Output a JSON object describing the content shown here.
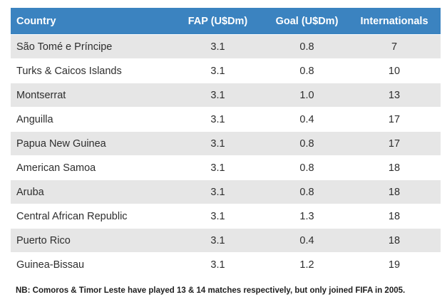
{
  "table": {
    "columns": [
      "Country",
      "FAP (U$Dm)",
      "Goal (U$Dm)",
      "Internationals"
    ],
    "rows": [
      {
        "country": "São Tomé e Príncipe",
        "fap": "3.1",
        "goal": "0.8",
        "internationals": "7"
      },
      {
        "country": "Turks & Caicos Islands",
        "fap": "3.1",
        "goal": "0.8",
        "internationals": "10"
      },
      {
        "country": "Montserrat",
        "fap": "3.1",
        "goal": "1.0",
        "internationals": "13"
      },
      {
        "country": "Anguilla",
        "fap": "3.1",
        "goal": "0.4",
        "internationals": "17"
      },
      {
        "country": "Papua New Guinea",
        "fap": "3.1",
        "goal": "0.8",
        "internationals": "17"
      },
      {
        "country": "American Samoa",
        "fap": "3.1",
        "goal": "0.8",
        "internationals": "18"
      },
      {
        "country": "Aruba",
        "fap": "3.1",
        "goal": "0.8",
        "internationals": "18"
      },
      {
        "country": "Central African Republic",
        "fap": "3.1",
        "goal": "1.3",
        "internationals": "18"
      },
      {
        "country": "Puerto Rico",
        "fap": "3.1",
        "goal": "0.4",
        "internationals": "18"
      },
      {
        "country": "Guinea-Bissau",
        "fap": "3.1",
        "goal": "1.2",
        "internationals": "19"
      }
    ]
  },
  "footnote": "NB: Comoros & Timor Leste have played 13 & 14 matches respectively, but only joined FIFA in 2005.",
  "colors": {
    "header_bg": "#3b83c0",
    "header_text": "#ffffff",
    "row_alt_bg": "#e6e6e6"
  }
}
